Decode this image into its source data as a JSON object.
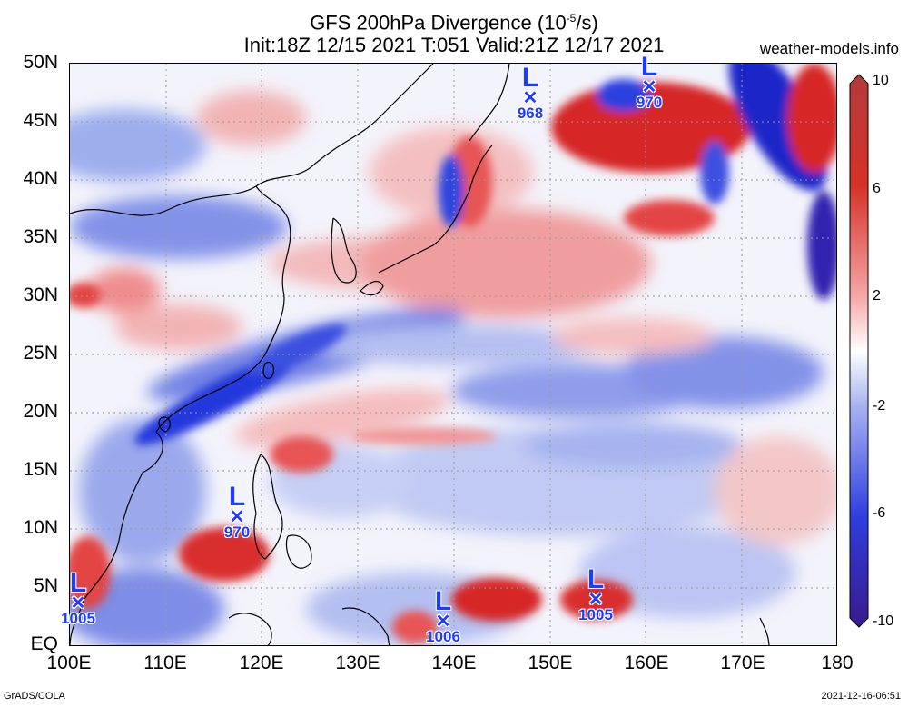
{
  "title": {
    "line1_prefix": "GFS 200hPa Divergence (10",
    "line1_exp": "-5",
    "line1_suffix": "/s)",
    "line2": "Init:18Z 12/15 2021 T:051 Valid:21Z 12/17 2021"
  },
  "site_label": "weather-models.info",
  "footer": {
    "left": "GrADS/COLA",
    "right": "2021-12-16-06:51"
  },
  "lat_labels": [
    "50N",
    "45N",
    "40N",
    "35N",
    "30N",
    "25N",
    "20N",
    "15N",
    "10N",
    "5N",
    "EQ"
  ],
  "lon_labels": [
    "100E",
    "110E",
    "120E",
    "130E",
    "140E",
    "150E",
    "160E",
    "170E",
    "180"
  ],
  "colorbar": {
    "labels": [
      "10",
      "6",
      "2",
      "-2",
      "-6",
      "-10"
    ],
    "colors": [
      "#b33a3a",
      "#d73027",
      "#f4a6a6",
      "#ffffff",
      "#a7b3f0",
      "#2f3de0",
      "#3a1a8c"
    ]
  },
  "lows": [
    {
      "symbol": "L",
      "pressure": "968"
    },
    {
      "symbol": "L",
      "pressure": "970"
    },
    {
      "symbol": "L",
      "pressure": "970"
    },
    {
      "symbol": "L",
      "pressure": "1005"
    },
    {
      "symbol": "L",
      "pressure": "1006"
    },
    {
      "symbol": "L",
      "pressure": "1005"
    }
  ]
}
